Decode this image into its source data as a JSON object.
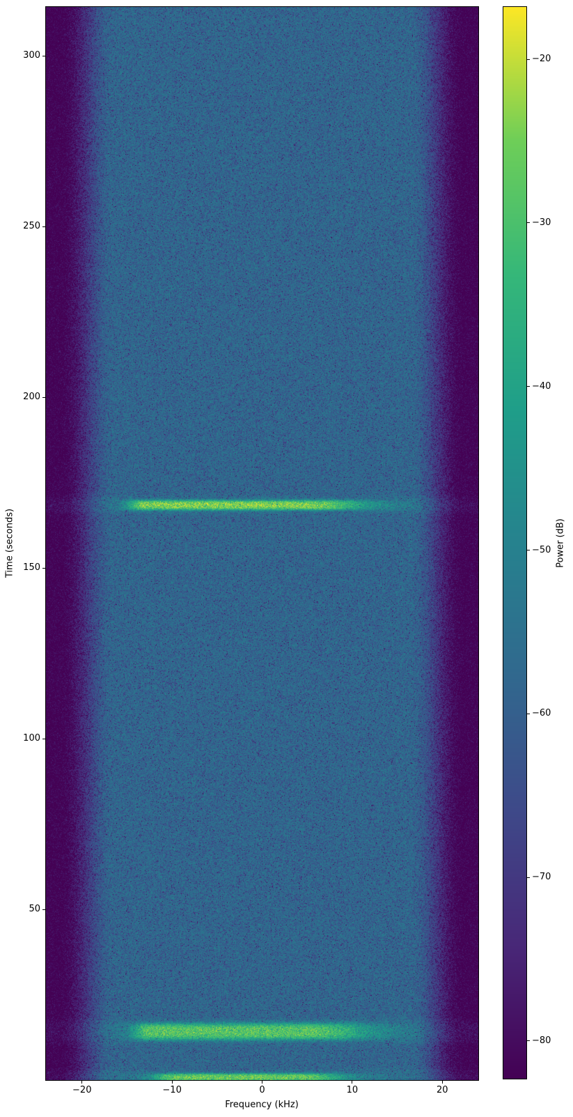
{
  "figure": {
    "background": "#ffffff"
  },
  "chart_data": {
    "type": "heatmap",
    "subtype": "spectrogram",
    "title": "",
    "xlabel": "Frequency (kHz)",
    "ylabel": "Time (seconds)",
    "colorbar_label": "Power (dB)",
    "x_range_khz": [
      -24,
      24
    ],
    "y_range_s": [
      0,
      314.3
    ],
    "color_range_db": [
      -82.3,
      -16.8
    ],
    "x_ticks": [
      {
        "value": -20,
        "label": "−20"
      },
      {
        "value": -10,
        "label": "−10"
      },
      {
        "value": 0,
        "label": "0"
      },
      {
        "value": 10,
        "label": "10"
      },
      {
        "value": 20,
        "label": "20"
      }
    ],
    "y_ticks": [
      {
        "value": 50,
        "label": "50"
      },
      {
        "value": 100,
        "label": "100"
      },
      {
        "value": 150,
        "label": "150"
      },
      {
        "value": 200,
        "label": "200"
      },
      {
        "value": 250,
        "label": "250"
      },
      {
        "value": 300,
        "label": "300"
      }
    ],
    "colorbar_ticks": [
      {
        "value": -20,
        "label": "−20"
      },
      {
        "value": -30,
        "label": "−30"
      },
      {
        "value": -40,
        "label": "−40"
      },
      {
        "value": -50,
        "label": "−50"
      },
      {
        "value": -60,
        "label": "−60"
      },
      {
        "value": -70,
        "label": "−70"
      },
      {
        "value": -80,
        "label": "−80"
      }
    ],
    "noise_floor_db": -58.5,
    "noise_model": "exponential_periodogram",
    "edge_rolloff": {
      "start_khz": 16.5,
      "width_khz": 6.0,
      "depth_db": 26
    },
    "bands": [
      {
        "time_s": 168.4,
        "half_width_s": 1.5,
        "freq_lo_khz": -13.0,
        "freq_hi_khz": 5.0,
        "rise_khz": 2.0,
        "fall_khz": 7.0,
        "peak_boost_db": 30,
        "broadband_boost_db": 3.5
      },
      {
        "time_s": 14.2,
        "half_width_s": 2.5,
        "freq_lo_khz": -12.5,
        "freq_hi_khz": 5.5,
        "rise_khz": 2.0,
        "fall_khz": 7.0,
        "peak_boost_db": 26,
        "broadband_boost_db": 3.5
      },
      {
        "time_s": 0.8,
        "half_width_s": 1.2,
        "freq_lo_khz": -9.5,
        "freq_hi_khz": 4.5,
        "rise_khz": 3.0,
        "fall_khz": 5.0,
        "peak_boost_db": 28,
        "broadband_boost_db": 3.0
      }
    ],
    "colormap": "viridis",
    "colormap_stops": [
      [
        0.0,
        "#440154"
      ],
      [
        0.125,
        "#482878"
      ],
      [
        0.25,
        "#3e4989"
      ],
      [
        0.375,
        "#31688e"
      ],
      [
        0.5,
        "#26828e"
      ],
      [
        0.625,
        "#1f9e89"
      ],
      [
        0.75,
        "#35b779"
      ],
      [
        0.875,
        "#6ece58"
      ],
      [
        1.0,
        "#fde725"
      ]
    ]
  }
}
